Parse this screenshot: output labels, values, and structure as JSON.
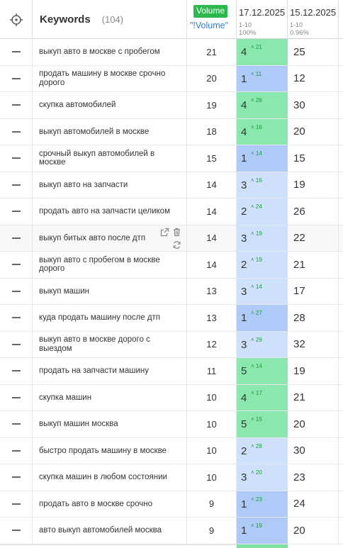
{
  "header": {
    "target_icon": "crosshair-icon",
    "keywords_label": "Keywords",
    "keywords_count": "(104)",
    "volume_badge": "Volume",
    "volume_link": "\"!Volume\"",
    "periods": [
      {
        "date": "17.12.2025",
        "range": "1-10",
        "pct": "100%"
      },
      {
        "date": "15.12.2025",
        "range": "1-10",
        "pct": "0.96%"
      }
    ]
  },
  "colors": {
    "green": "#8ae7ad",
    "blue": "#aecbf8",
    "light_blue": "#cfe0fb",
    "change_text": "#1a9c3c",
    "volume_badge": "#2db84d"
  },
  "rows": [
    {
      "keyword": "выкуп авто в москве с пробегом",
      "volume": "21",
      "pos": "4",
      "change": "21",
      "prev": "25",
      "color": "green"
    },
    {
      "keyword": "продать машину в москве срочно дорого",
      "volume": "20",
      "pos": "1",
      "change": "11",
      "prev": "12",
      "color": "blue"
    },
    {
      "keyword": "скупка автомобилей",
      "volume": "19",
      "pos": "4",
      "change": "26",
      "prev": "30",
      "color": "green"
    },
    {
      "keyword": "выкуп автомобилей в москве",
      "volume": "18",
      "pos": "4",
      "change": "16",
      "prev": "20",
      "color": "green"
    },
    {
      "keyword": "срочный выкуп автомобилей в москве",
      "volume": "15",
      "pos": "1",
      "change": "14",
      "prev": "15",
      "color": "blue"
    },
    {
      "keyword": "выкуп авто на запчасти",
      "volume": "14",
      "pos": "3",
      "change": "16",
      "prev": "19",
      "color": "light_blue"
    },
    {
      "keyword": "продать авто на запчасти целиком",
      "volume": "14",
      "pos": "2",
      "change": "24",
      "prev": "26",
      "color": "light_blue"
    },
    {
      "keyword": "выкуп битых авто после дтп",
      "volume": "14",
      "pos": "3",
      "change": "19",
      "prev": "22",
      "color": "light_blue",
      "hover": true
    },
    {
      "keyword": "выкуп авто с пробегом в москве дорого",
      "volume": "14",
      "pos": "2",
      "change": "19",
      "prev": "21",
      "color": "light_blue"
    },
    {
      "keyword": "выкуп машин",
      "volume": "13",
      "pos": "3",
      "change": "14",
      "prev": "17",
      "color": "light_blue"
    },
    {
      "keyword": "куда продать машину после дтп",
      "volume": "13",
      "pos": "1",
      "change": "27",
      "prev": "28",
      "color": "blue"
    },
    {
      "keyword": "выкуп авто в москве дорого с выездом",
      "volume": "12",
      "pos": "3",
      "change": "29",
      "prev": "32",
      "color": "light_blue"
    },
    {
      "keyword": "продать на запчасти машину",
      "volume": "11",
      "pos": "5",
      "change": "14",
      "prev": "19",
      "color": "green"
    },
    {
      "keyword": "скупка машин",
      "volume": "10",
      "pos": "4",
      "change": "17",
      "prev": "21",
      "color": "green"
    },
    {
      "keyword": "выкуп машин москва",
      "volume": "10",
      "pos": "5",
      "change": "15",
      "prev": "20",
      "color": "green"
    },
    {
      "keyword": "быстро продать машину в москве",
      "volume": "10",
      "pos": "2",
      "change": "28",
      "prev": "30",
      "color": "light_blue"
    },
    {
      "keyword": "скупка машин в любом состоянии",
      "volume": "10",
      "pos": "3",
      "change": "20",
      "prev": "23",
      "color": "light_blue"
    },
    {
      "keyword": "продать авто в москве срочно",
      "volume": "9",
      "pos": "1",
      "change": "23",
      "prev": "24",
      "color": "blue"
    },
    {
      "keyword": "авто выкуп автомобилей москва",
      "volume": "9",
      "pos": "1",
      "change": "19",
      "prev": "20",
      "color": "blue"
    }
  ],
  "row_action_icons": [
    "external-link-icon",
    "trash-icon",
    "refresh-icon"
  ]
}
